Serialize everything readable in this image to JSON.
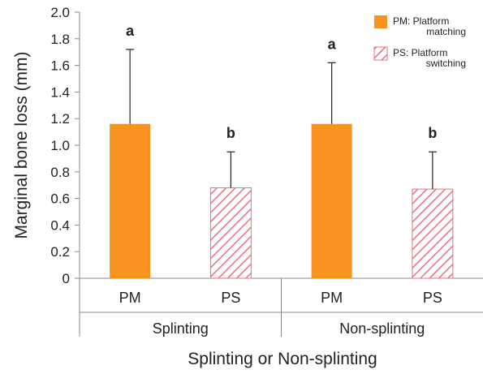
{
  "chart_data": {
    "type": "bar",
    "ylabel": "Marginal bone loss (mm)",
    "xlabel": "Splinting or Non-splinting",
    "ylim": [
      0,
      2.0
    ],
    "yticks": [
      "0",
      "0.2",
      "0.4",
      "0.6",
      "0.8",
      "1.0",
      "1.2",
      "1.4",
      "1.6",
      "1.8",
      "2.0"
    ],
    "groups": [
      "Splinting",
      "Non-splinting"
    ],
    "categories": [
      "PM",
      "PS",
      "PM",
      "PS"
    ],
    "bars": [
      {
        "group": "Splinting",
        "category": "PM",
        "series": "PM",
        "value": 1.16,
        "error": 0.56,
        "sig": "a"
      },
      {
        "group": "Splinting",
        "category": "PS",
        "series": "PS",
        "value": 0.68,
        "error": 0.27,
        "sig": "b"
      },
      {
        "group": "Non-splinting",
        "category": "PM",
        "series": "PM",
        "value": 1.16,
        "error": 0.46,
        "sig": "a"
      },
      {
        "group": "Non-splinting",
        "category": "PS",
        "series": "PS",
        "value": 0.67,
        "error": 0.28,
        "sig": "b"
      }
    ],
    "legend": {
      "position": "top-right",
      "items": [
        {
          "series": "PM",
          "line1": "PM: Platform",
          "line2": "matching",
          "fill": "solid",
          "color": "#f7931e"
        },
        {
          "series": "PS",
          "line1": "PS: Platform",
          "line2": "switching",
          "fill": "hatched",
          "color": "#e8707f"
        }
      ]
    },
    "grid": false
  }
}
